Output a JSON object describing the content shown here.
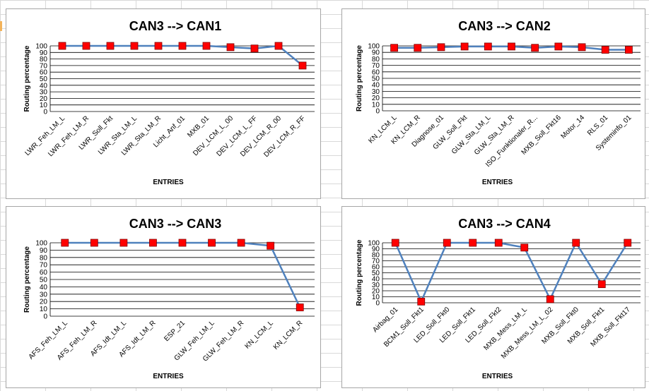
{
  "style": {
    "line_color": "#4f81bd",
    "marker_fill": "#ff0000",
    "marker_stroke": "#7f0000",
    "grid_color": "#000000",
    "title_color": "#000000"
  },
  "chart_data": [
    {
      "type": "line",
      "title": "CAN3 --> CAN1",
      "xlabel": "ENTRIES",
      "ylabel": "Routing percentage",
      "ylim": [
        0,
        100
      ],
      "yticks": [
        0,
        10,
        20,
        30,
        40,
        50,
        60,
        70,
        80,
        90,
        100
      ],
      "grid": true,
      "legend": "none",
      "categories": [
        "LWR_Feh_LM_L",
        "LWR_Feh_LM_R",
        "LWR_Soll_Fkt",
        "LWR_Sta_LM_L",
        "LWR_Sta_LM_R",
        "Licht_Anf_01",
        "MXB_01",
        "DEV_LCM_L_00",
        "DEV_LCM_L_FF",
        "DEV_LCM_R_00",
        "DEV_LCM_R_FF"
      ],
      "values": [
        100,
        100,
        100,
        100,
        100,
        100,
        100,
        98,
        96,
        100,
        70
      ]
    },
    {
      "type": "line",
      "title": "CAN3 --> CAN2",
      "xlabel": "ENTRIES",
      "ylabel": "Routing percentage",
      "ylim": [
        0,
        100
      ],
      "yticks": [
        0,
        10,
        20,
        30,
        40,
        50,
        60,
        70,
        80,
        90,
        100
      ],
      "grid": true,
      "legend": "none",
      "categories": [
        "KN_LCM_L",
        "KN_LCM_R",
        "Diagnose_01",
        "GLW_Soll_Fkt",
        "GLW_Sta_LM_L",
        "GLW_Sta_LM_R",
        "ISO_Funktionaler_R...",
        "MXB_Soll_Fkt16",
        "Motor_14",
        "RLS_01",
        "Systeminfo_01"
      ],
      "values": [
        97,
        97,
        98,
        99,
        99,
        99,
        97,
        99,
        98,
        94,
        94
      ]
    },
    {
      "type": "line",
      "title": "CAN3 --> CAN3",
      "xlabel": "ENTRIES",
      "ylabel": "Routing percentage",
      "ylim": [
        0,
        100
      ],
      "yticks": [
        0,
        10,
        20,
        30,
        40,
        50,
        60,
        70,
        80,
        90,
        100
      ],
      "grid": true,
      "legend": "none",
      "categories": [
        "AFS_Feh_LM_L",
        "AFS_Feh_LM_R",
        "AFS_Idt_LM_L",
        "AFS_Idt_LM_R",
        "ESP_21",
        "GLW_Feh_LM_L",
        "GLW_Feh_LM_R",
        "KN_LCM_L",
        "KN_LCM_R"
      ],
      "values": [
        100,
        100,
        100,
        100,
        100,
        100,
        100,
        96,
        12
      ]
    },
    {
      "type": "line",
      "title": "CAN3 --> CAN4",
      "xlabel": "ENTRIES",
      "ylabel": "Routing percentage",
      "ylim": [
        0,
        100
      ],
      "yticks": [
        0,
        10,
        20,
        30,
        40,
        50,
        60,
        70,
        80,
        90,
        100
      ],
      "grid": true,
      "legend": "none",
      "categories": [
        "Airbag_01",
        "BCM1_Soll_Fkt1",
        "LED_Soll_Fkt0",
        "LED_Soll_Fkt1",
        "LED_Soll_Fkt2",
        "MXB_Mess_LM_L",
        "MXB_Mess_LM_L_02",
        "MXB_Soll_Fkt0",
        "MXB_Soll_Fkt1",
        "MXB_Soll_Fkt17"
      ],
      "values": [
        100,
        2,
        100,
        100,
        100,
        92,
        6,
        100,
        31,
        100
      ]
    }
  ]
}
